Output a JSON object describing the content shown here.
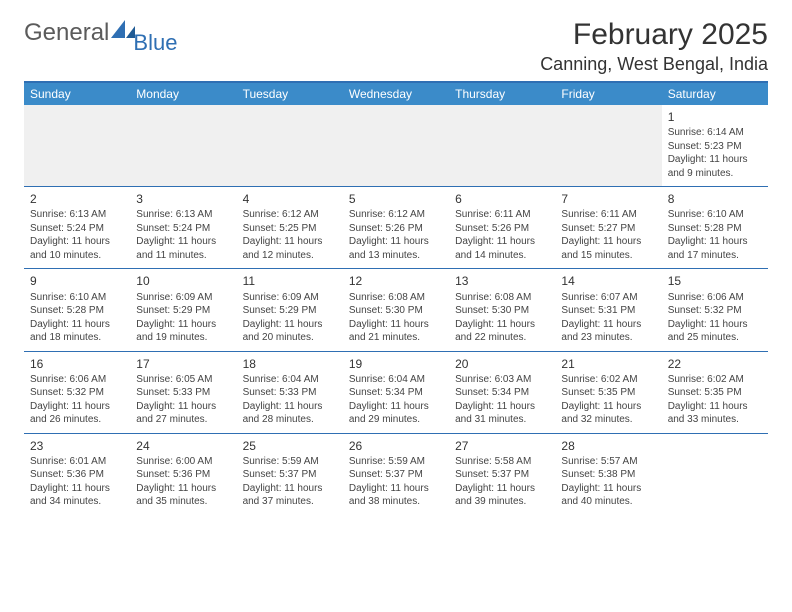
{
  "logo": {
    "text1": "General",
    "text2": "Blue"
  },
  "title": "February 2025",
  "location": "Canning, West Bengal, India",
  "colors": {
    "header_bg": "#3b8bc9",
    "header_text": "#ffffff",
    "rule": "#2f6fb3",
    "body_text": "#444444",
    "empty_bg": "#f0f0f0",
    "logo_gray": "#5b5b5b",
    "logo_blue": "#2f6fb3"
  },
  "weekdays": [
    "Sunday",
    "Monday",
    "Tuesday",
    "Wednesday",
    "Thursday",
    "Friday",
    "Saturday"
  ],
  "weeks": [
    [
      null,
      null,
      null,
      null,
      null,
      null,
      {
        "n": "1",
        "sr": "Sunrise: 6:14 AM",
        "ss": "Sunset: 5:23 PM",
        "dl": "Daylight: 11 hours and 9 minutes."
      }
    ],
    [
      {
        "n": "2",
        "sr": "Sunrise: 6:13 AM",
        "ss": "Sunset: 5:24 PM",
        "dl": "Daylight: 11 hours and 10 minutes."
      },
      {
        "n": "3",
        "sr": "Sunrise: 6:13 AM",
        "ss": "Sunset: 5:24 PM",
        "dl": "Daylight: 11 hours and 11 minutes."
      },
      {
        "n": "4",
        "sr": "Sunrise: 6:12 AM",
        "ss": "Sunset: 5:25 PM",
        "dl": "Daylight: 11 hours and 12 minutes."
      },
      {
        "n": "5",
        "sr": "Sunrise: 6:12 AM",
        "ss": "Sunset: 5:26 PM",
        "dl": "Daylight: 11 hours and 13 minutes."
      },
      {
        "n": "6",
        "sr": "Sunrise: 6:11 AM",
        "ss": "Sunset: 5:26 PM",
        "dl": "Daylight: 11 hours and 14 minutes."
      },
      {
        "n": "7",
        "sr": "Sunrise: 6:11 AM",
        "ss": "Sunset: 5:27 PM",
        "dl": "Daylight: 11 hours and 15 minutes."
      },
      {
        "n": "8",
        "sr": "Sunrise: 6:10 AM",
        "ss": "Sunset: 5:28 PM",
        "dl": "Daylight: 11 hours and 17 minutes."
      }
    ],
    [
      {
        "n": "9",
        "sr": "Sunrise: 6:10 AM",
        "ss": "Sunset: 5:28 PM",
        "dl": "Daylight: 11 hours and 18 minutes."
      },
      {
        "n": "10",
        "sr": "Sunrise: 6:09 AM",
        "ss": "Sunset: 5:29 PM",
        "dl": "Daylight: 11 hours and 19 minutes."
      },
      {
        "n": "11",
        "sr": "Sunrise: 6:09 AM",
        "ss": "Sunset: 5:29 PM",
        "dl": "Daylight: 11 hours and 20 minutes."
      },
      {
        "n": "12",
        "sr": "Sunrise: 6:08 AM",
        "ss": "Sunset: 5:30 PM",
        "dl": "Daylight: 11 hours and 21 minutes."
      },
      {
        "n": "13",
        "sr": "Sunrise: 6:08 AM",
        "ss": "Sunset: 5:30 PM",
        "dl": "Daylight: 11 hours and 22 minutes."
      },
      {
        "n": "14",
        "sr": "Sunrise: 6:07 AM",
        "ss": "Sunset: 5:31 PM",
        "dl": "Daylight: 11 hours and 23 minutes."
      },
      {
        "n": "15",
        "sr": "Sunrise: 6:06 AM",
        "ss": "Sunset: 5:32 PM",
        "dl": "Daylight: 11 hours and 25 minutes."
      }
    ],
    [
      {
        "n": "16",
        "sr": "Sunrise: 6:06 AM",
        "ss": "Sunset: 5:32 PM",
        "dl": "Daylight: 11 hours and 26 minutes."
      },
      {
        "n": "17",
        "sr": "Sunrise: 6:05 AM",
        "ss": "Sunset: 5:33 PM",
        "dl": "Daylight: 11 hours and 27 minutes."
      },
      {
        "n": "18",
        "sr": "Sunrise: 6:04 AM",
        "ss": "Sunset: 5:33 PM",
        "dl": "Daylight: 11 hours and 28 minutes."
      },
      {
        "n": "19",
        "sr": "Sunrise: 6:04 AM",
        "ss": "Sunset: 5:34 PM",
        "dl": "Daylight: 11 hours and 29 minutes."
      },
      {
        "n": "20",
        "sr": "Sunrise: 6:03 AM",
        "ss": "Sunset: 5:34 PM",
        "dl": "Daylight: 11 hours and 31 minutes."
      },
      {
        "n": "21",
        "sr": "Sunrise: 6:02 AM",
        "ss": "Sunset: 5:35 PM",
        "dl": "Daylight: 11 hours and 32 minutes."
      },
      {
        "n": "22",
        "sr": "Sunrise: 6:02 AM",
        "ss": "Sunset: 5:35 PM",
        "dl": "Daylight: 11 hours and 33 minutes."
      }
    ],
    [
      {
        "n": "23",
        "sr": "Sunrise: 6:01 AM",
        "ss": "Sunset: 5:36 PM",
        "dl": "Daylight: 11 hours and 34 minutes."
      },
      {
        "n": "24",
        "sr": "Sunrise: 6:00 AM",
        "ss": "Sunset: 5:36 PM",
        "dl": "Daylight: 11 hours and 35 minutes."
      },
      {
        "n": "25",
        "sr": "Sunrise: 5:59 AM",
        "ss": "Sunset: 5:37 PM",
        "dl": "Daylight: 11 hours and 37 minutes."
      },
      {
        "n": "26",
        "sr": "Sunrise: 5:59 AM",
        "ss": "Sunset: 5:37 PM",
        "dl": "Daylight: 11 hours and 38 minutes."
      },
      {
        "n": "27",
        "sr": "Sunrise: 5:58 AM",
        "ss": "Sunset: 5:37 PM",
        "dl": "Daylight: 11 hours and 39 minutes."
      },
      {
        "n": "28",
        "sr": "Sunrise: 5:57 AM",
        "ss": "Sunset: 5:38 PM",
        "dl": "Daylight: 11 hours and 40 minutes."
      },
      null
    ]
  ]
}
